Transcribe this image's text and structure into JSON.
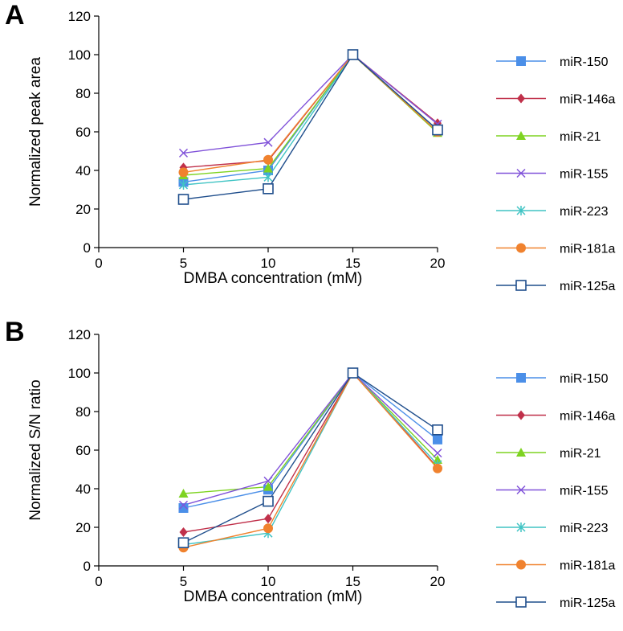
{
  "chart_data": [
    {
      "type": "line",
      "panel_label": "A",
      "title": "",
      "xlabel": "DMBA concentration (mM)",
      "ylabel": "Normalized peak area",
      "xlim": [
        0,
        20
      ],
      "ylim": [
        0,
        120
      ],
      "xticks": [
        0,
        5,
        10,
        15,
        20
      ],
      "yticks": [
        0,
        20,
        40,
        60,
        80,
        100,
        120
      ],
      "x": [
        5,
        10,
        15,
        20
      ],
      "legend_position": "right",
      "series": [
        {
          "name": "miR-150",
          "color": "#4B8FE8",
          "marker": "square-filled",
          "values": [
            34,
            40,
            100,
            61
          ]
        },
        {
          "name": "miR-146a",
          "color": "#C0304A",
          "marker": "diamond",
          "values": [
            41.5,
            45,
            100,
            64.5
          ]
        },
        {
          "name": "miR-21",
          "color": "#7ED321",
          "marker": "triangle",
          "values": [
            37.5,
            41,
            100,
            59.5
          ]
        },
        {
          "name": "miR-155",
          "color": "#8052D9",
          "marker": "x",
          "values": [
            49,
            54.5,
            100,
            64
          ]
        },
        {
          "name": "miR-223",
          "color": "#40C4C4",
          "marker": "asterisk",
          "values": [
            32.5,
            36.5,
            100,
            61
          ]
        },
        {
          "name": "miR-181a",
          "color": "#F0822E",
          "marker": "circle",
          "values": [
            39,
            45.5,
            100,
            60
          ]
        },
        {
          "name": "miR-125a",
          "color": "#1F4E8C",
          "marker": "square-open",
          "values": [
            25,
            30.5,
            100,
            61
          ]
        }
      ]
    },
    {
      "type": "line",
      "panel_label": "B",
      "title": "",
      "xlabel": "DMBA concentration (mM)",
      "ylabel": "Normalized S/N ratio",
      "xlim": [
        0,
        20
      ],
      "ylim": [
        0,
        120
      ],
      "xticks": [
        0,
        5,
        10,
        15,
        20
      ],
      "yticks": [
        0,
        20,
        40,
        60,
        80,
        100,
        120
      ],
      "x": [
        5,
        10,
        15,
        20
      ],
      "legend_position": "right",
      "series": [
        {
          "name": "miR-150",
          "color": "#4B8FE8",
          "marker": "square-filled",
          "values": [
            30,
            39.5,
            100,
            65.5
          ]
        },
        {
          "name": "miR-146a",
          "color": "#C0304A",
          "marker": "diamond",
          "values": [
            17.5,
            24.5,
            100,
            51
          ]
        },
        {
          "name": "miR-21",
          "color": "#7ED321",
          "marker": "triangle",
          "values": [
            37.5,
            41,
            100,
            55
          ]
        },
        {
          "name": "miR-155",
          "color": "#8052D9",
          "marker": "x",
          "values": [
            31.5,
            44,
            100,
            58.5
          ]
        },
        {
          "name": "miR-223",
          "color": "#40C4C4",
          "marker": "asterisk",
          "values": [
            11,
            17,
            100,
            52.5
          ]
        },
        {
          "name": "miR-181a",
          "color": "#F0822E",
          "marker": "circle",
          "values": [
            9.5,
            19.5,
            100,
            50.5
          ]
        },
        {
          "name": "miR-125a",
          "color": "#1F4E8C",
          "marker": "square-open",
          "values": [
            12,
            33.5,
            100,
            70.5
          ]
        }
      ]
    }
  ]
}
